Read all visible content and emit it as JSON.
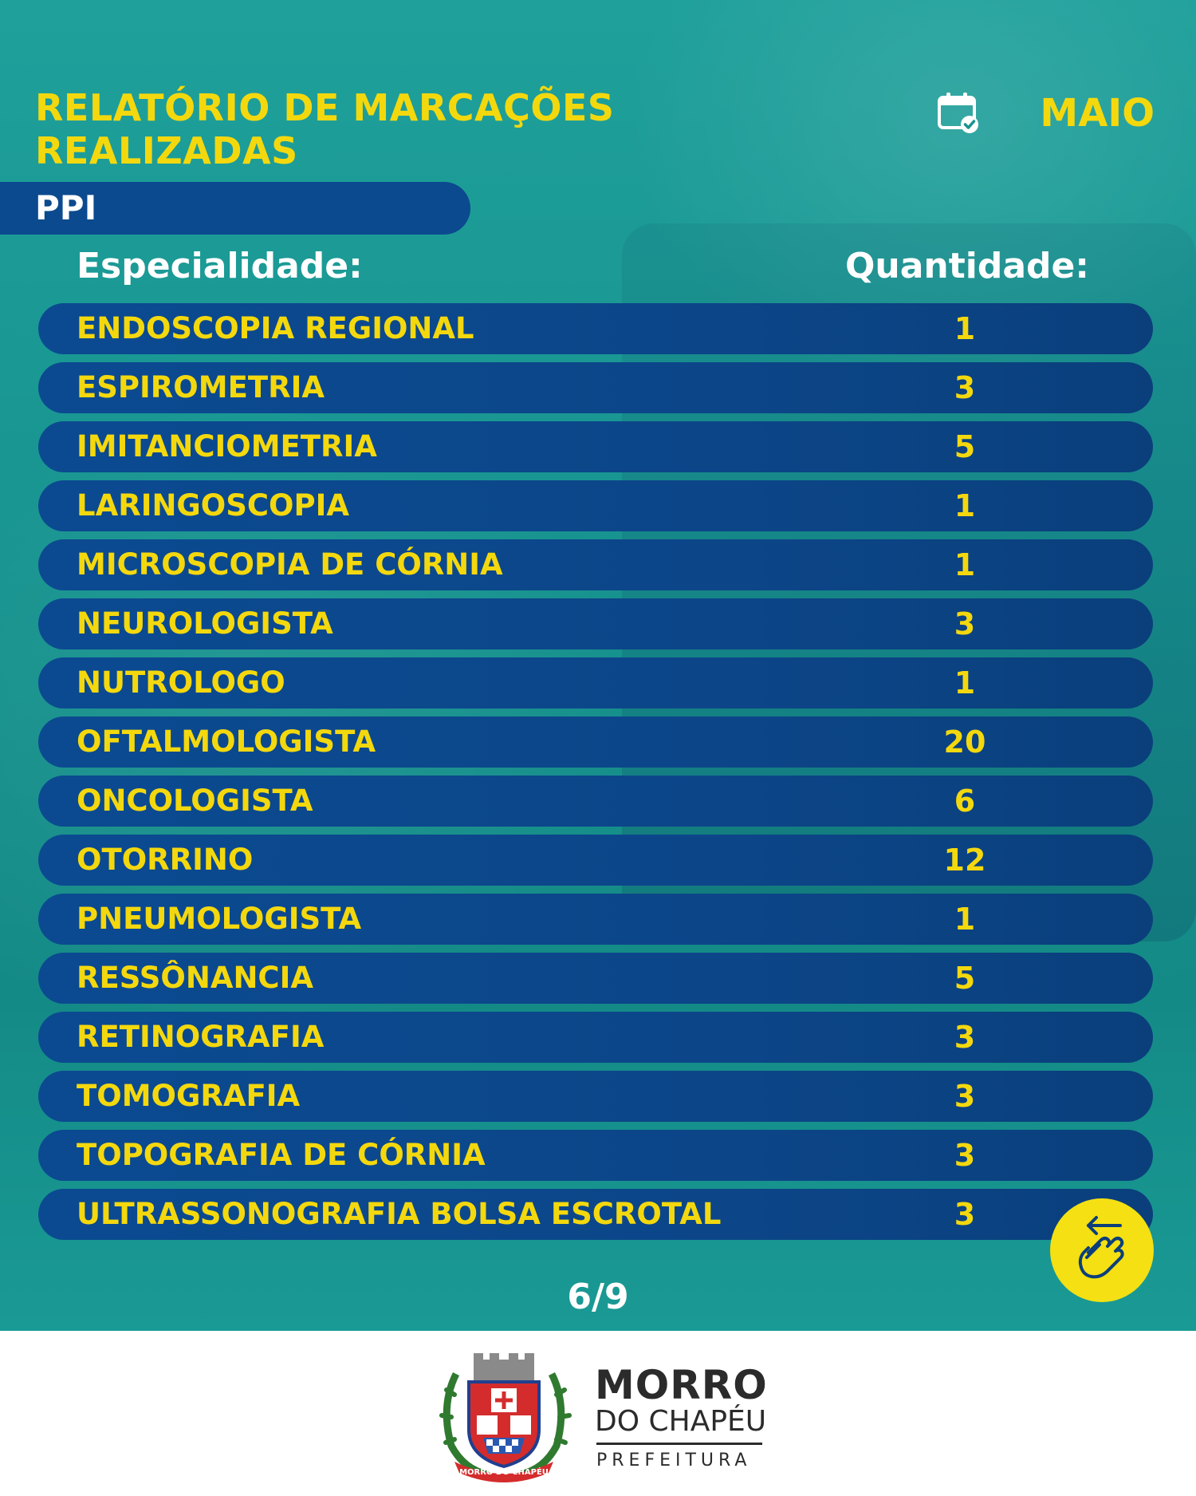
{
  "header": {
    "title_line1": "RELATÓRIO DE MARCAÇÕES",
    "title_line2": "REALIZADAS",
    "month": "MAIO",
    "calendar_icon": "calendar-check-icon"
  },
  "section": {
    "label": "PPI"
  },
  "table": {
    "columns": {
      "specialty": "Especialidade:",
      "quantity": "Quantidade:"
    },
    "rows": [
      {
        "name": "ENDOSCOPIA REGIONAL",
        "qty": "1"
      },
      {
        "name": "ESPIROMETRIA",
        "qty": "3"
      },
      {
        "name": "IMITANCIOMETRIA",
        "qty": "5"
      },
      {
        "name": "LARINGOSCOPIA",
        "qty": "1"
      },
      {
        "name": "MICROSCOPIA DE CÓRNIA",
        "qty": "1"
      },
      {
        "name": "NEUROLOGISTA",
        "qty": "3"
      },
      {
        "name": "NUTROLOGO",
        "qty": "1"
      },
      {
        "name": "OFTALMOLOGISTA",
        "qty": "20"
      },
      {
        "name": "ONCOLOGISTA",
        "qty": "6"
      },
      {
        "name": "OTORRINO",
        "qty": "12"
      },
      {
        "name": "PNEUMOLOGISTA",
        "qty": "1"
      },
      {
        "name": "RESSÔNANCIA",
        "qty": "5"
      },
      {
        "name": "RETINOGRAFIA",
        "qty": "3"
      },
      {
        "name": "TOMOGRAFIA",
        "qty": "3"
      },
      {
        "name": "TOPOGRAFIA DE CÓRNIA",
        "qty": "3"
      },
      {
        "name": "ULTRASSONOGRAFIA BOLSA ESCROTAL",
        "qty": "3"
      }
    ]
  },
  "pagination": {
    "label": "6/9"
  },
  "swipe_icon": "swipe-hand-icon",
  "footer": {
    "brand_line1": "MORRO",
    "brand_line2": "DO CHAPÉU",
    "brand_line3": "PREFEITURA",
    "crest_text": "MORRO DO CHAPÉU"
  },
  "colors": {
    "accent_yellow": "#f4d80e",
    "row_blue": "#0b4a8e",
    "background_teal": "#17938f"
  }
}
